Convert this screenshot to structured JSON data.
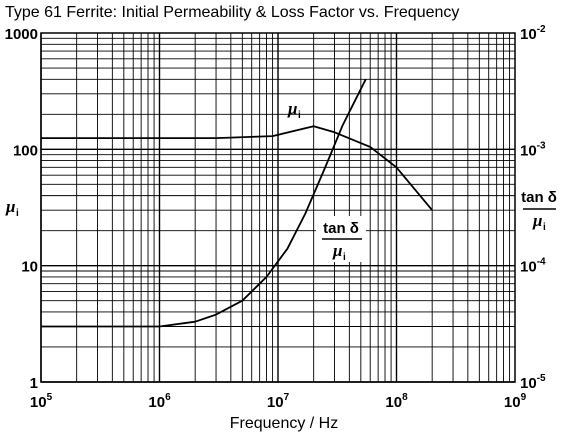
{
  "chart_data": {
    "type": "line",
    "title": "Type 61 Ferrite: Initial Permeability & Loss Factor vs. Frequency",
    "xlabel": "Frequency / Hz",
    "x_scale": "log",
    "xlim": [
      100000,
      1000000000
    ],
    "x_ticks": [
      {
        "value": 100000,
        "base": "10",
        "exp": "5"
      },
      {
        "value": 1000000,
        "base": "10",
        "exp": "6"
      },
      {
        "value": 10000000,
        "base": "10",
        "exp": "7"
      },
      {
        "value": 100000000,
        "base": "10",
        "exp": "8"
      },
      {
        "value": 1000000000,
        "base": "10",
        "exp": "9"
      }
    ],
    "left_axis": {
      "scale": "log",
      "lim": [
        1,
        1000
      ],
      "label_symbol": "μ",
      "label_sub": "i",
      "ticks": [
        {
          "value": 1,
          "label": "1"
        },
        {
          "value": 10,
          "label": "10"
        },
        {
          "value": 100,
          "label": "100"
        },
        {
          "value": 1000,
          "label": "1000"
        }
      ]
    },
    "right_axis": {
      "scale": "log",
      "lim": [
        1e-05,
        0.01
      ],
      "label_num": "tan δ",
      "label_den_symbol": "μ",
      "label_den_sub": "i",
      "ticks": [
        {
          "value": 1e-05,
          "base": "10",
          "exp": "-5"
        },
        {
          "value": 0.0001,
          "base": "10",
          "exp": "-4"
        },
        {
          "value": 0.001,
          "base": "10",
          "exp": "-3"
        },
        {
          "value": 0.01,
          "base": "10",
          "exp": "-2"
        }
      ]
    },
    "grid": true,
    "series": [
      {
        "name_symbol": "μ",
        "name_sub": "i",
        "axis": "left",
        "x": [
          100000,
          1000000,
          3000000,
          9000000,
          14000000,
          20000000,
          30000000,
          60000000,
          100000000,
          200000000
        ],
        "y": [
          125,
          125,
          125,
          130,
          145,
          158,
          140,
          105,
          70,
          30
        ]
      },
      {
        "name_num": "tan δ",
        "name_den_symbol": "μ",
        "name_den_sub": "i",
        "axis": "right",
        "x": [
          100000,
          1000000,
          2000000,
          3000000,
          5000000,
          8000000,
          12000000,
          17000000,
          25000000,
          35000000,
          55000000
        ],
        "y": [
          3e-05,
          3e-05,
          3.3e-05,
          3.8e-05,
          5e-05,
          8e-05,
          0.00014,
          0.00028,
          0.0007,
          0.0016,
          0.004
        ]
      }
    ]
  }
}
